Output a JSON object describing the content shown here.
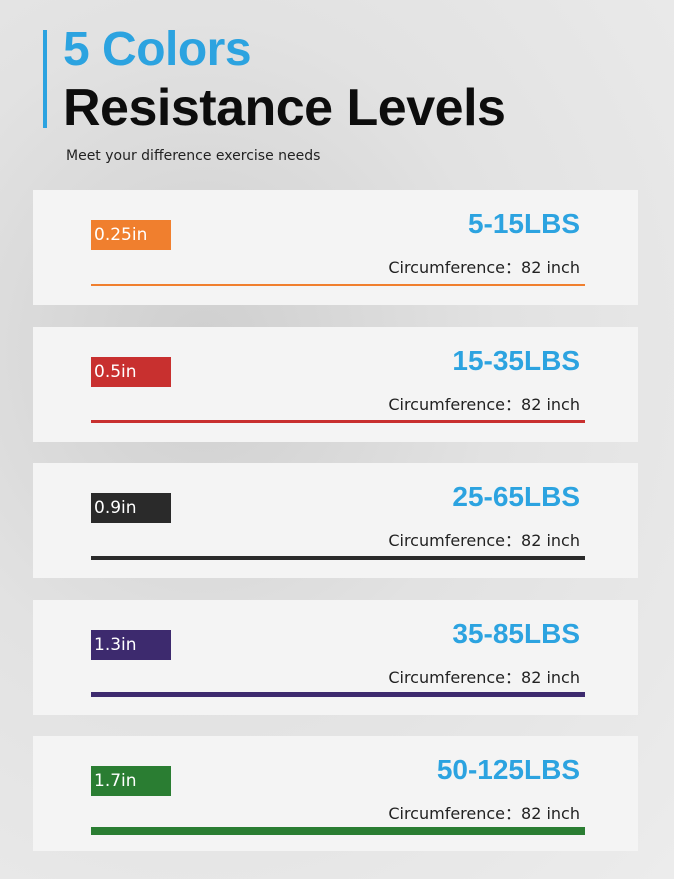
{
  "header": {
    "title_line1": "5 Colors",
    "title_line2": "Resistance Levels",
    "subtitle": "Meet your difference exercise needs"
  },
  "levels": [
    {
      "width": "0.25in",
      "range": "5-15LBS",
      "circumference": "Circumference：82 inch",
      "color": "#f07f2e"
    },
    {
      "width": "0.5in",
      "range": "15-35LBS",
      "circumference": "Circumference：82 inch",
      "color": "#c8302f"
    },
    {
      "width": "0.9in",
      "range": "25-65LBS",
      "circumference": "Circumference：82 inch",
      "color": "#2a2a2a"
    },
    {
      "width": "1.3in",
      "range": "35-85LBS",
      "circumference": "Circumference：82 inch",
      "color": "#3d2a6e"
    },
    {
      "width": "1.7in",
      "range": "50-125LBS",
      "circumference": "Circumference：82 inch",
      "color": "#2a7d32"
    }
  ]
}
